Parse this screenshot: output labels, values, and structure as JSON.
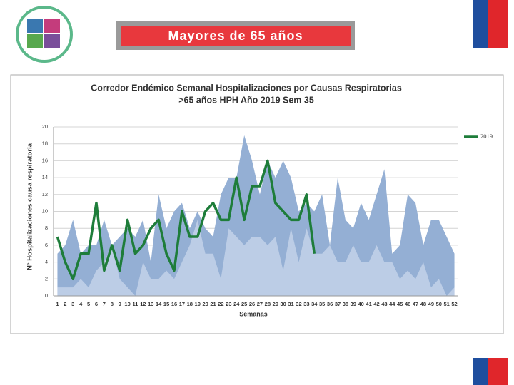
{
  "slide_title": "Mayores de 65 años",
  "chart_data": {
    "type": "line",
    "title": "Corredor Endémico Semanal Hospitalizaciones por Causas Respiratorias",
    "subtitle": ">65 años HPH Año 2019 Sem 35",
    "y_label": "N° Hospitalizaciones causa respiratoria",
    "x_label": "Semanas",
    "categories": [
      1,
      2,
      3,
      4,
      5,
      6,
      7,
      8,
      9,
      10,
      11,
      12,
      13,
      14,
      15,
      16,
      17,
      18,
      19,
      20,
      21,
      22,
      23,
      24,
      25,
      26,
      27,
      28,
      29,
      30,
      31,
      32,
      33,
      34,
      35,
      36,
      37,
      38,
      39,
      40,
      41,
      42,
      43,
      44,
      45,
      46,
      47,
      48,
      49,
      50,
      51,
      52
    ],
    "ylim": [
      0,
      20
    ],
    "yticks": [
      0,
      2,
      4,
      6,
      8,
      10,
      12,
      14,
      16,
      18,
      20
    ],
    "grid": true,
    "legend": "right",
    "areas": [
      {
        "color": "#94afd4",
        "values": [
          5,
          6,
          9,
          5,
          6,
          6,
          9,
          6,
          7,
          8,
          7,
          9,
          4,
          12,
          8,
          10,
          11,
          8,
          10,
          8,
          7,
          12,
          14,
          14,
          19,
          16,
          12,
          16,
          14,
          16,
          14,
          10,
          11,
          10,
          12,
          6,
          14,
          9,
          8,
          11,
          9,
          12,
          15,
          5,
          6,
          12,
          11,
          6,
          9,
          9,
          7,
          5
        ]
      },
      {
        "color": "#bccde6",
        "values": [
          1,
          1,
          1,
          2,
          1,
          3,
          4,
          6,
          2,
          1,
          0,
          4,
          2,
          2,
          3,
          2,
          4,
          6,
          9,
          5,
          5,
          2,
          8,
          7,
          6,
          7,
          7,
          6,
          7,
          3,
          8,
          4,
          8,
          5,
          5,
          6,
          4,
          4,
          6,
          4,
          4,
          6,
          4,
          4,
          2,
          3,
          2,
          4,
          1,
          2,
          0,
          1
        ]
      }
    ],
    "series": [
      {
        "name": "2019",
        "color": "#1e7d3a",
        "values": [
          7,
          4,
          2,
          5,
          5,
          11,
          3,
          6,
          3,
          9,
          5,
          6,
          8,
          9,
          5,
          3,
          10,
          7,
          7,
          10,
          11,
          9,
          9,
          14,
          9,
          13,
          13,
          16,
          11,
          10,
          9,
          9,
          12,
          5,
          null,
          null,
          null,
          null,
          null,
          null,
          null,
          null,
          null,
          null,
          null,
          null,
          null,
          null,
          null,
          null,
          null,
          null
        ]
      }
    ]
  }
}
